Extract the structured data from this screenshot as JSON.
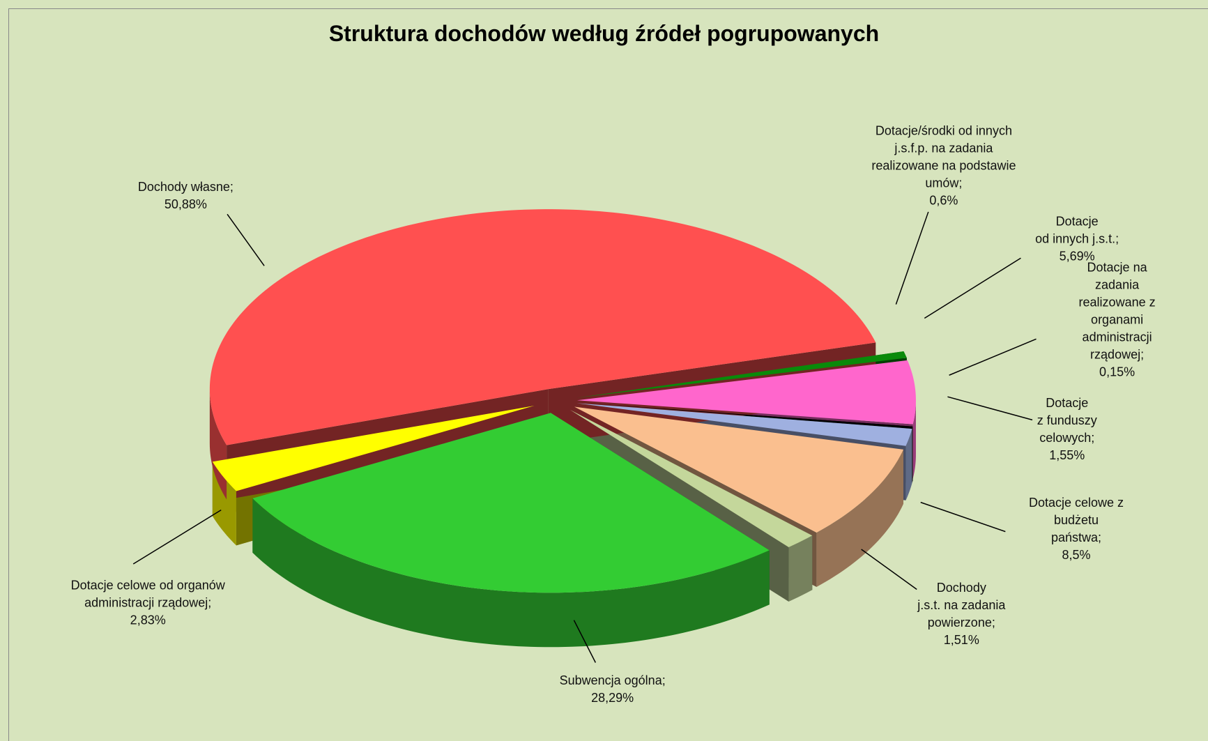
{
  "chart_data": {
    "type": "pie3d",
    "title": "Struktura dochodów według źródeł pogrupowanych",
    "categories": [
      "Dotacje/środki od innych\nj.s.f.p. na zadania\nrealizowane na podstawie\numów;",
      "Dotacje\nod innych j.s.t.;",
      "Dotacje na zadania\nrealizowane z organami\nadministracji rządowej;",
      "Dotacje\nz funduszy\ncelowych;",
      "Dotacje celowe z budżetu\npaństwa;",
      "Dochody\nj.s.t. na zadania\npowierzone;",
      "Subwencja ogólna;",
      "Dotacje celowe od organów\nadministracji rządowej;",
      "Dochody własne;"
    ],
    "values": [
      0.6,
      5.69,
      0.15,
      1.55,
      8.5,
      1.51,
      28.29,
      2.83,
      50.88
    ],
    "value_labels": [
      "0,6%",
      "5,69%",
      "0,15%",
      "1,55%",
      "8,5%",
      "1,51%",
      "28,29%",
      "2,83%",
      "50,88%"
    ],
    "colors": [
      "#0a8a0a",
      "#ff66cc",
      "#000000",
      "#9fb0e0",
      "#fabf8f",
      "#c4d79b",
      "#33cc33",
      "#ffff00",
      "#ff5050"
    ]
  }
}
